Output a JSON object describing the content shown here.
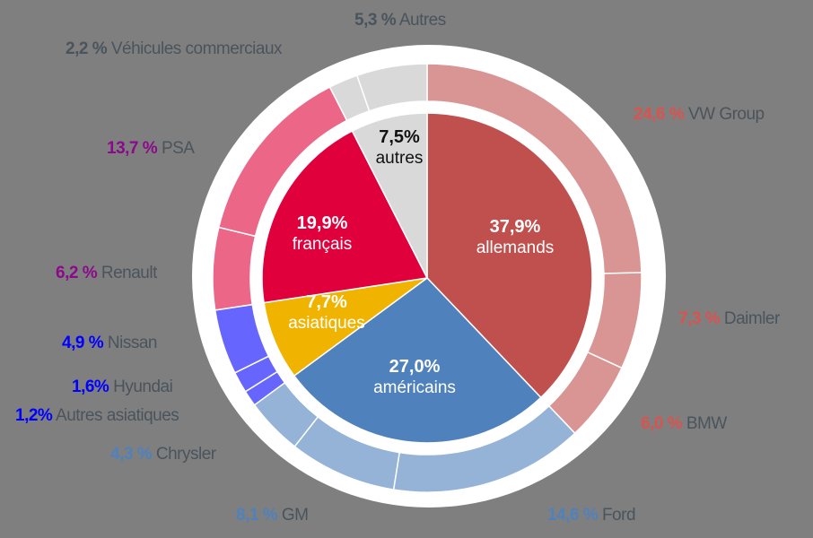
{
  "chart_data": {
    "type": "pie",
    "subtype": "nested-donut",
    "title": "",
    "inner_ring": {
      "categories": [
        "allemands",
        "américains",
        "asiatiques",
        "français",
        "autres"
      ],
      "values": [
        37.9,
        27.0,
        7.7,
        19.9,
        7.5
      ],
      "labels": [
        "37,9%",
        "27,0%",
        "7,7%",
        "19,9%",
        "7,5%"
      ],
      "colors": [
        "#c0504d",
        "#4f81bd",
        "#f0b400",
        "#e0003c",
        "#d9d9d9"
      ]
    },
    "outer_ring": {
      "categories": [
        "VW Group",
        "Daimler",
        "BMW",
        "Ford",
        "GM",
        "Chrysler",
        "Autres asiatiques",
        "Hyundai",
        "Nissan",
        "Renault",
        "PSA",
        "Véhicules commerciaux",
        "Autres"
      ],
      "values": [
        24.6,
        7.3,
        6.0,
        14.6,
        8.1,
        4.3,
        1.2,
        1.6,
        4.9,
        6.2,
        13.7,
        2.2,
        5.3
      ],
      "labels": [
        "24,6 %",
        "7,3 %",
        "6,0 %",
        "14,6 %",
        "8,1 %",
        "4,3 %",
        "1,2%",
        "1,6%",
        "4,9 %",
        "6,2 %",
        "13,7 %",
        "2,2 %",
        "5,3 %"
      ],
      "colors": [
        "#d99594",
        "#d99594",
        "#d99594",
        "#95b3d7",
        "#95b3d7",
        "#95b3d7",
        "#6666ff",
        "#6666ff",
        "#6666ff",
        "#ec6787",
        "#ec6787",
        "#d9d9d9",
        "#d9d9d9"
      ],
      "label_colors": [
        "#d9534f",
        "#d9534f",
        "#d9534f",
        "#4f81bd",
        "#4f81bd",
        "#4f81bd",
        "#0000ff",
        "#0000ff",
        "#0000ff",
        "#8b0a8b",
        "#8b0a8b",
        "#4a545c",
        "#4a545c"
      ]
    },
    "legend": "none (direct labels)",
    "start_angle": "12 o'clock, clockwise"
  },
  "labels": {
    "inner": [
      {
        "pct": "37,9%",
        "name": "allemands"
      },
      {
        "pct": "27,0%",
        "name": "américains"
      },
      {
        "pct": "7,7%",
        "name": "asiatiques"
      },
      {
        "pct": "19,9%",
        "name": "français"
      },
      {
        "pct": "7,5%",
        "name": "autres"
      }
    ],
    "outer": [
      {
        "pct": "24,6 %",
        "name": "VW Group"
      },
      {
        "pct": "7,3 %",
        "name": "Daimler"
      },
      {
        "pct": "6,0 %",
        "name": "BMW"
      },
      {
        "pct": "14,6 %",
        "name": "Ford"
      },
      {
        "pct": "8,1 %",
        "name": "GM"
      },
      {
        "pct": "4,3 %",
        "name": "Chrysler"
      },
      {
        "pct": "1,2%",
        "name": "Autres asiatiques"
      },
      {
        "pct": "1,6%",
        "name": "Hyundai"
      },
      {
        "pct": "4,9 %",
        "name": "Nissan"
      },
      {
        "pct": "6,2 %",
        "name": "Renault"
      },
      {
        "pct": "13,7 %",
        "name": "PSA"
      },
      {
        "pct": "2,2 %",
        "name": "Véhicules commerciaux"
      },
      {
        "pct": "5,3 %",
        "name": "Autres"
      }
    ]
  },
  "colors": {
    "background": "#7f7f7f",
    "disk": "#ffffff",
    "name_text": "#4a545c"
  }
}
